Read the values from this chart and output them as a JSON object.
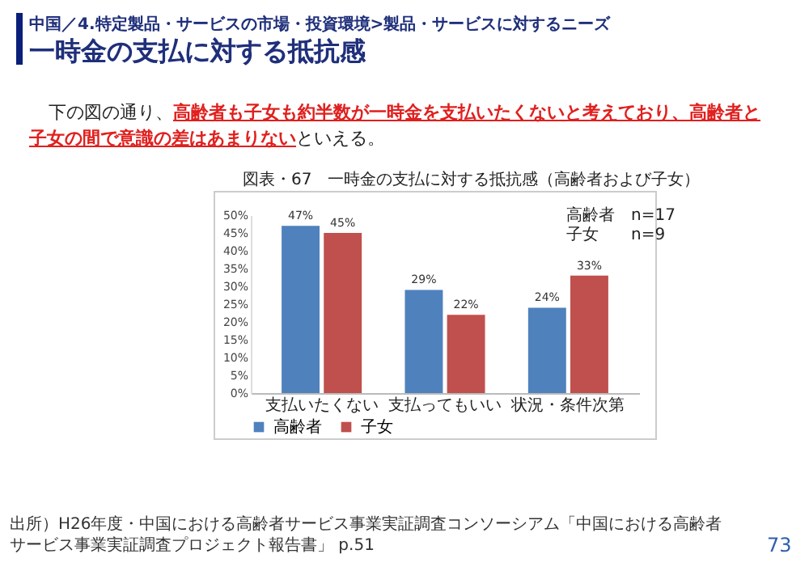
{
  "chart_data": {
    "type": "bar",
    "title": "一時金の支払に対する抵抗感",
    "subtitle": "中国／4.特定製品・サービスの市場・投資環境>製品・サービスに対するニーズ",
    "annotations": [
      "下の図の通り、",
      "高齢者も子女も約半数が一時金を支払いたくないと考えており、高齢者と子女の間で意識の差はあまりない",
      "といえる。",
      "図表・67　一時金の支払に対する抵抗感（高齢者および子女）",
      "高齢者　n=17",
      "子女　　n=9",
      "出所）H26年度・中国における高齢者サービス事業実証調査コンソーシアム「中国における高齢者サービス事業実証調査プロジェクト報告書」 p.51",
      "73"
    ],
    "categories": [
      "支払いたくない",
      "支払ってもいい",
      "状況・条件次第"
    ],
    "series": [
      {
        "name": "高齢者",
        "color": "#4f81bd",
        "values": [
          47,
          29,
          24
        ],
        "value_labels": [
          "47%",
          "29%",
          "24%"
        ]
      },
      {
        "name": "子女",
        "color": "#c0504d",
        "values": [
          45,
          22,
          33
        ],
        "value_labels": [
          "45%",
          "22%",
          "33%"
        ]
      }
    ],
    "ylim": [
      0,
      50
    ],
    "yticks": [
      {
        "value": 0,
        "label": "0%"
      },
      {
        "value": 5,
        "label": "5%"
      },
      {
        "value": 10,
        "label": "10%"
      },
      {
        "value": 15,
        "label": "15%"
      },
      {
        "value": 20,
        "label": "20%"
      },
      {
        "value": 25,
        "label": "25%"
      },
      {
        "value": 30,
        "label": "30%"
      },
      {
        "value": 35,
        "label": "35%"
      },
      {
        "value": 40,
        "label": "40%"
      },
      {
        "value": 45,
        "label": "45%"
      },
      {
        "value": 50,
        "label": "50%"
      }
    ],
    "legend": "bottom"
  }
}
